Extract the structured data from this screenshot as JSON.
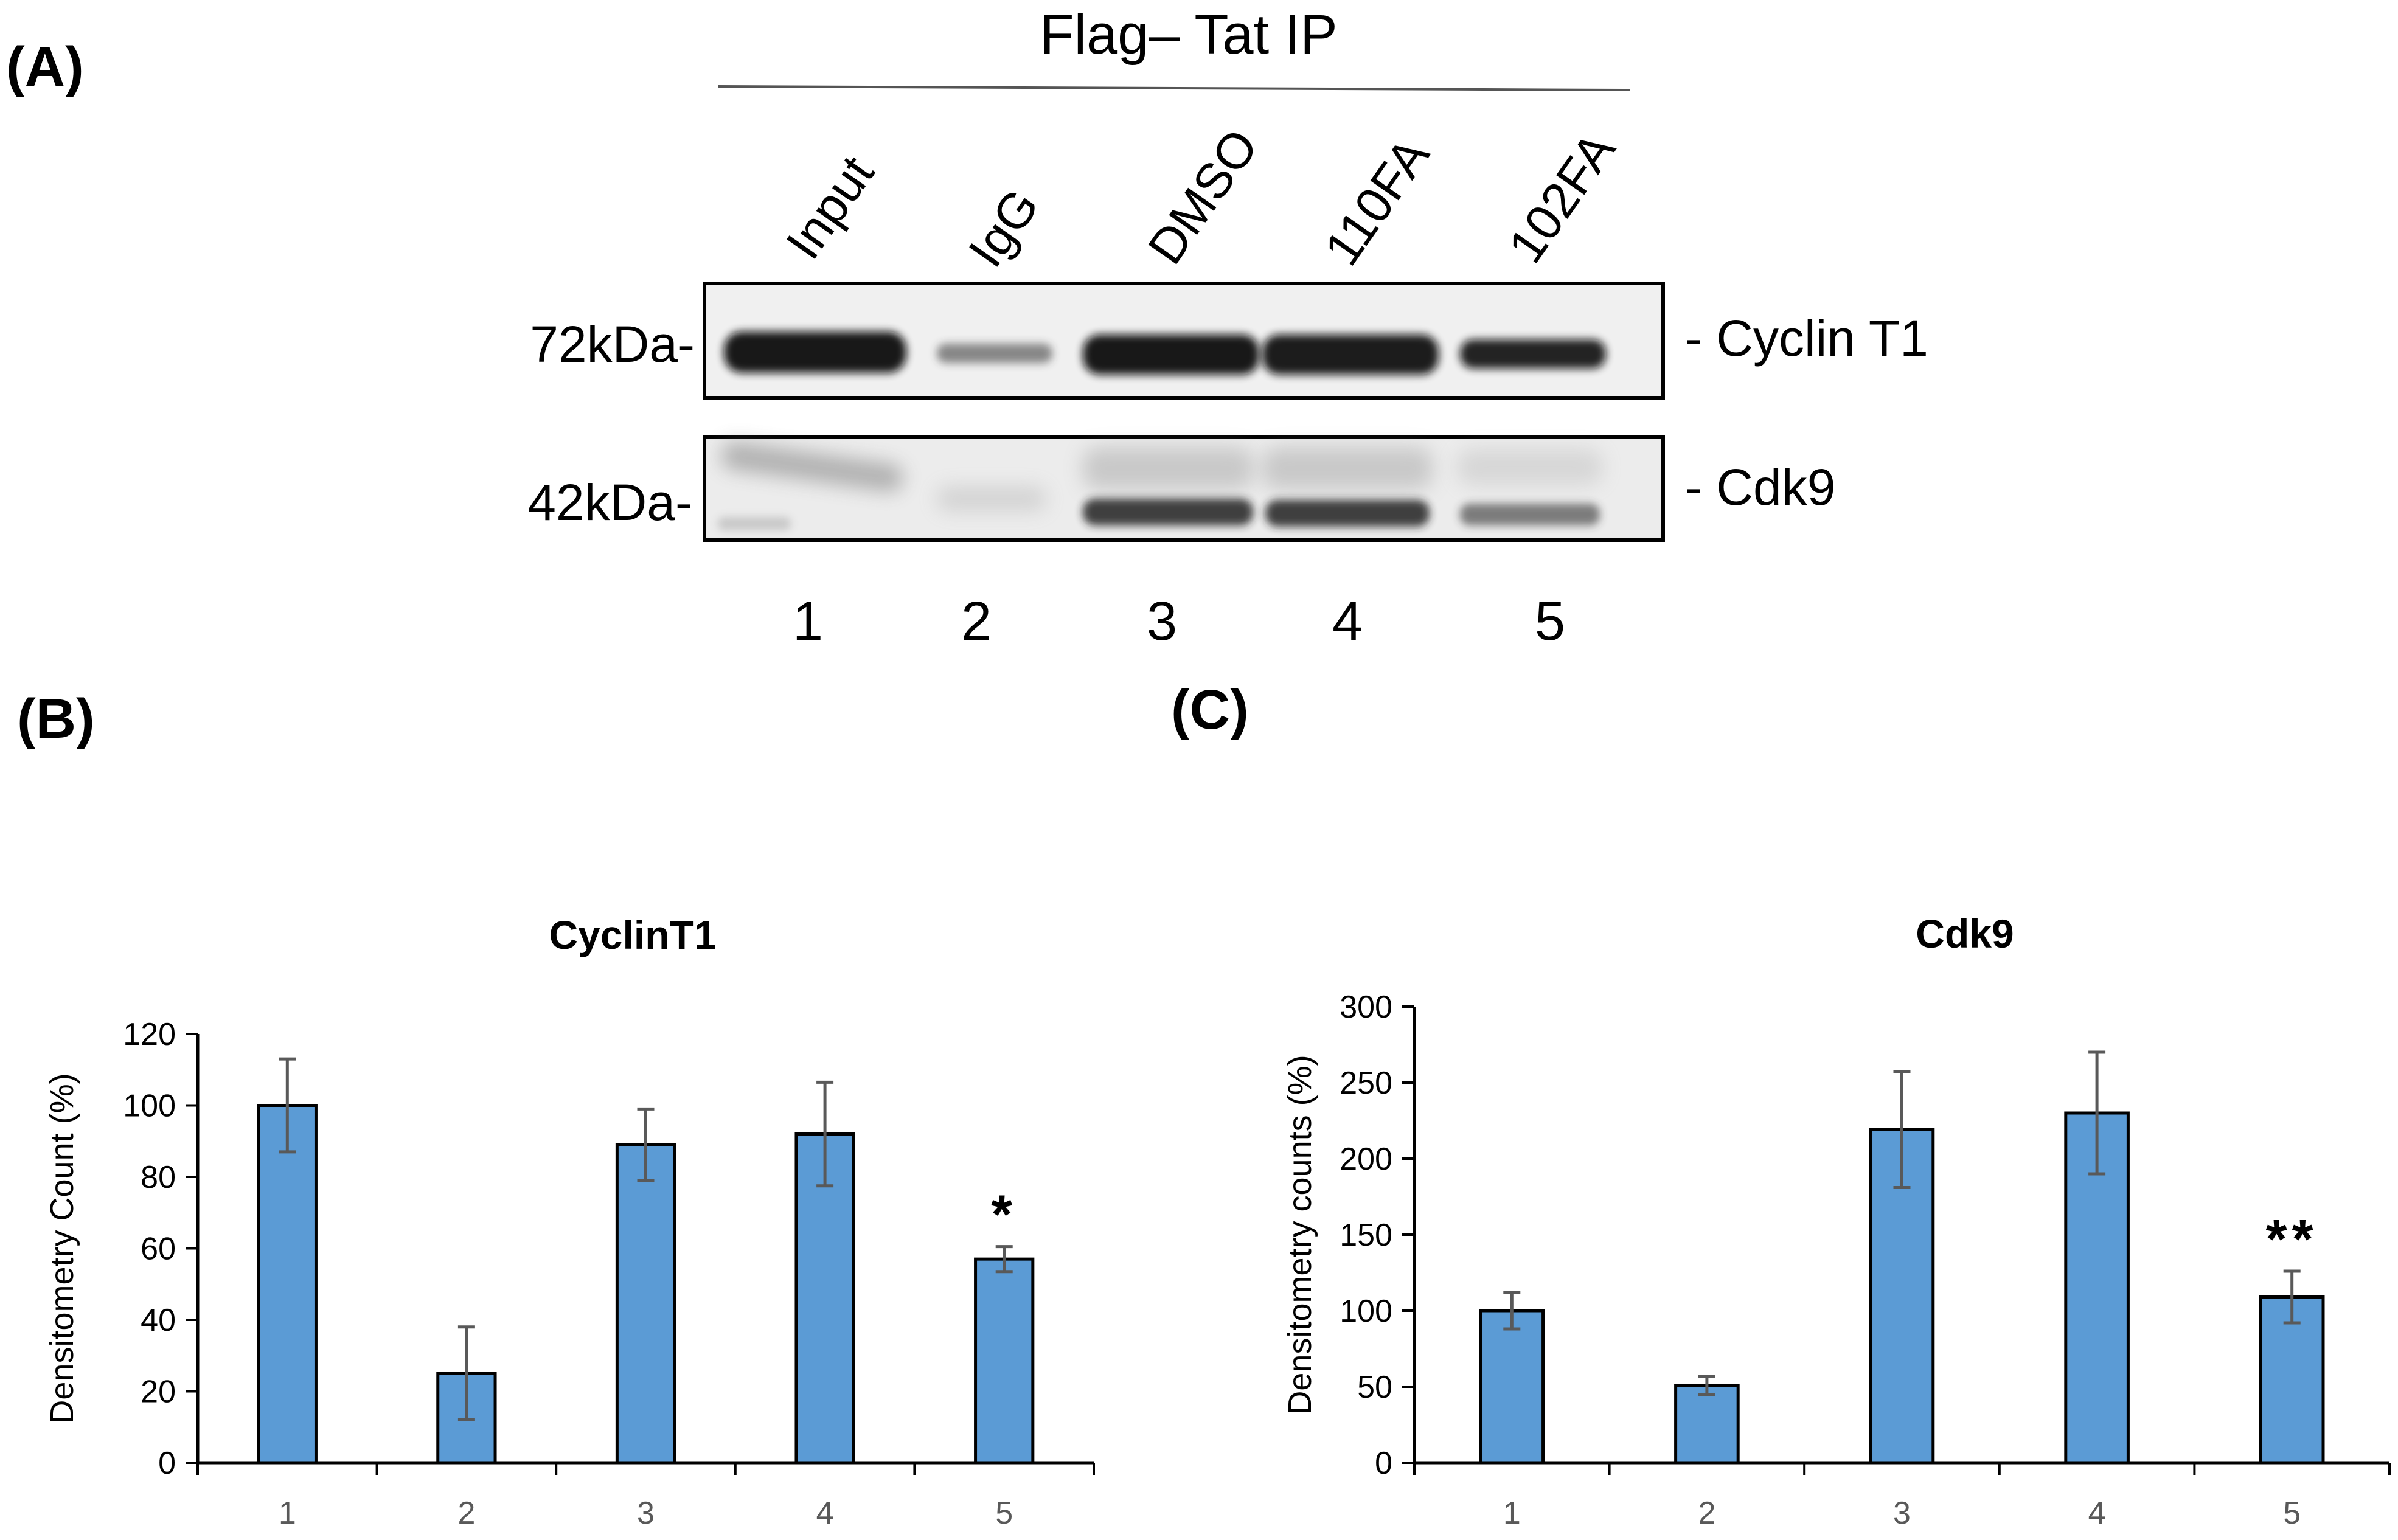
{
  "panels": {
    "a": "(A)",
    "b": "(B)",
    "c": "(C)"
  },
  "blot": {
    "ip_title": "Flag– Tat IP",
    "lanes": [
      "Input",
      "IgG",
      "DMSO",
      "110FA",
      "102FA"
    ],
    "lane_numbers": [
      "1",
      "2",
      "3",
      "4",
      "5"
    ],
    "markers": [
      "72kDa-",
      "42kDa-"
    ],
    "proteins": [
      "- Cyclin T1",
      "- Cdk9"
    ],
    "cyclin_band_intensity": [
      0.95,
      0.35,
      0.92,
      0.9,
      0.75
    ],
    "cdk9_band_intensity": [
      0.3,
      0.12,
      0.8,
      0.78,
      0.5
    ]
  },
  "chart_data": [
    {
      "type": "bar",
      "title": "CyclinT1",
      "ylabel": "Densitometry Count (%)",
      "xlabel": "",
      "categories": [
        "1",
        "2",
        "3",
        "4",
        "5"
      ],
      "values": [
        100,
        25,
        89,
        92,
        57
      ],
      "errors": [
        13,
        13,
        10,
        14.5,
        3.5
      ],
      "ylim": [
        0,
        120
      ],
      "yticks": [
        "0",
        "20",
        "40",
        "60",
        "80",
        "100",
        "120"
      ],
      "significance": [
        "",
        "",
        "",
        "",
        "*"
      ],
      "grid": false,
      "bar_color": "#5b9bd5"
    },
    {
      "type": "bar",
      "title": "Cdk9",
      "ylabel": "Densitometry counts (%)",
      "xlabel": "",
      "categories": [
        "1",
        "2",
        "3",
        "4",
        "5"
      ],
      "values": [
        100,
        51,
        219,
        230,
        109
      ],
      "errors": [
        12,
        6,
        38,
        40,
        17
      ],
      "ylim": [
        0,
        300
      ],
      "yticks": [
        "0",
        "50",
        "100",
        "150",
        "200",
        "250",
        "300"
      ],
      "significance": [
        "",
        "",
        "",
        "",
        "**"
      ],
      "grid": false,
      "bar_color": "#5b9bd5"
    }
  ]
}
